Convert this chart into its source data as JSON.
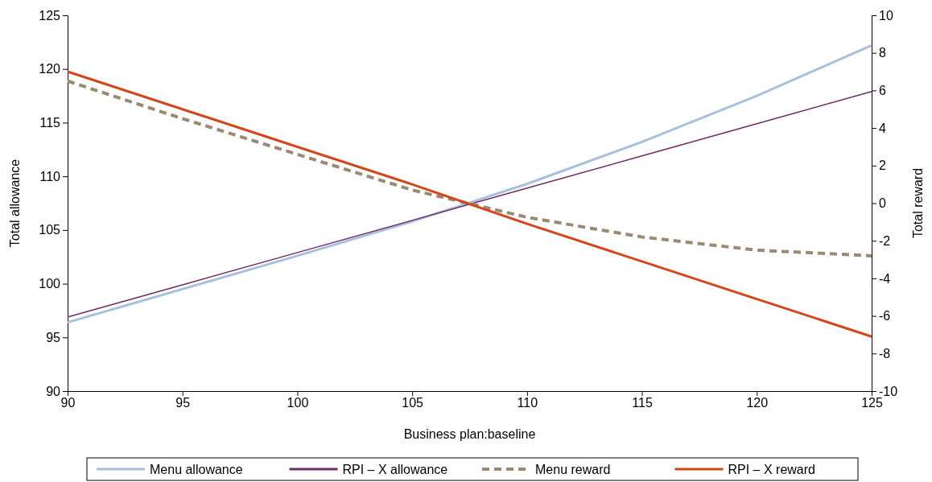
{
  "chart_data": {
    "type": "line",
    "xlabel": "Business plan:baseline",
    "ylabel": "Total allowance",
    "y2label": "Total reward",
    "x": [
      90,
      95,
      100,
      105,
      110,
      115,
      120,
      125
    ],
    "xlim": [
      90,
      125
    ],
    "xticks": [
      90,
      95,
      100,
      105,
      110,
      115,
      120,
      125
    ],
    "ylim": [
      90,
      125
    ],
    "yticks": [
      90,
      95,
      100,
      105,
      110,
      115,
      120,
      125
    ],
    "y2lim": [
      -10,
      10
    ],
    "y2ticks": [
      -10,
      -8,
      -6,
      -4,
      -2,
      0,
      2,
      4,
      6,
      8,
      10
    ],
    "grid": false,
    "legend": "bottom",
    "marker": "none",
    "series": [
      {
        "name": "Menu allowance",
        "color": "#a9c0dc",
        "line_style": "solid",
        "values": [
          96.4,
          99.5,
          102.6,
          105.8,
          109.3,
          113.2,
          117.5,
          122.2
        ]
      },
      {
        "name": "RPI – X allowance",
        "color": "#6e2c62",
        "line_style": "solid",
        "values": [
          96.9,
          99.9,
          102.9,
          105.9,
          108.9,
          111.9,
          114.9,
          117.9
        ]
      },
      {
        "name": "Menu reward",
        "color": "#9a8a72",
        "line_style": "dashed",
        "axis": "y2",
        "values": [
          6.5,
          4.5,
          2.6,
          0.7,
          -0.75,
          -1.8,
          -2.5,
          -2.8
        ]
      },
      {
        "name": "RPI – X reward",
        "color": "#d2461a",
        "line_style": "solid",
        "axis": "y2",
        "values": [
          7.0,
          5.0,
          3.0,
          1.0,
          -1.1,
          -3.1,
          -5.1,
          -7.1
        ]
      }
    ]
  }
}
